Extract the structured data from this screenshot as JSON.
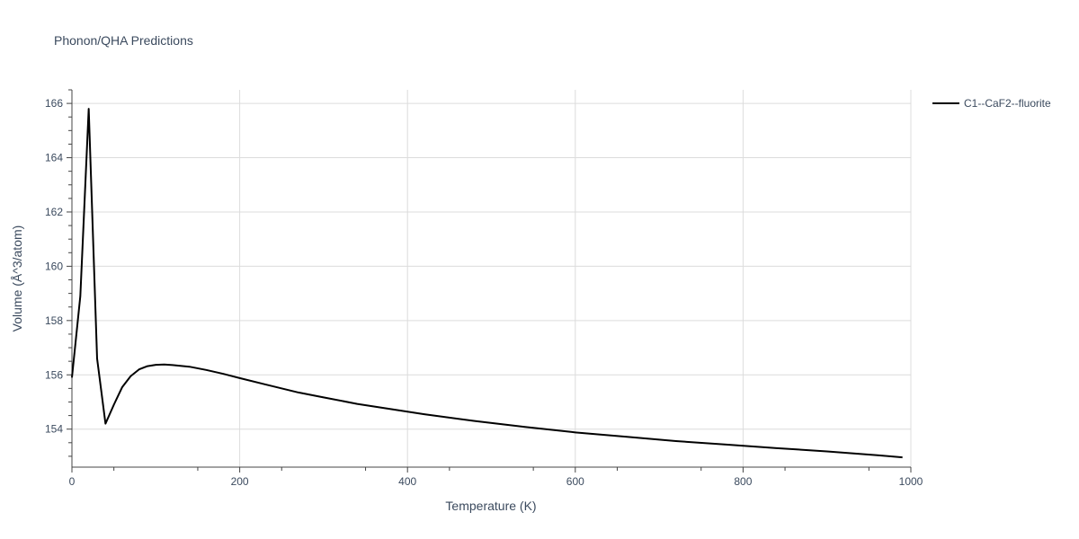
{
  "chart_data": {
    "type": "line",
    "title": "Phonon/QHA Predictions",
    "xlabel": "Temperature (K)",
    "ylabel": "Volume (Å^3/atom)",
    "xlim": [
      0,
      1000
    ],
    "ylim": [
      152.6,
      166.5
    ],
    "x_ticks": [
      0,
      200,
      400,
      600,
      800,
      1000
    ],
    "x_tick_labels": [
      "0",
      "200",
      "400",
      "600",
      "800",
      "1000"
    ],
    "y_ticks": [
      154,
      156,
      158,
      160,
      162,
      164,
      166
    ],
    "y_tick_labels": [
      "154",
      "156",
      "158",
      "160",
      "162",
      "164",
      "166"
    ],
    "grid": true,
    "legend_placement": "top-right-outside",
    "series": [
      {
        "name": "C1--CaF2--fluorite",
        "color": "#000000",
        "x": [
          0,
          10,
          20,
          30,
          40,
          50,
          60,
          70,
          80,
          90,
          100,
          110,
          120,
          140,
          160,
          180,
          200,
          230,
          270,
          300,
          340,
          380,
          420,
          480,
          540,
          600,
          660,
          720,
          780,
          840,
          900,
          960,
          990
        ],
        "y": [
          155.9,
          158.9,
          165.8,
          156.6,
          154.2,
          154.9,
          155.55,
          155.95,
          156.2,
          156.32,
          156.37,
          156.38,
          156.36,
          156.3,
          156.18,
          156.04,
          155.88,
          155.65,
          155.35,
          155.17,
          154.93,
          154.74,
          154.55,
          154.3,
          154.08,
          153.88,
          153.72,
          153.56,
          153.43,
          153.3,
          153.18,
          153.04,
          152.96
        ]
      }
    ]
  }
}
